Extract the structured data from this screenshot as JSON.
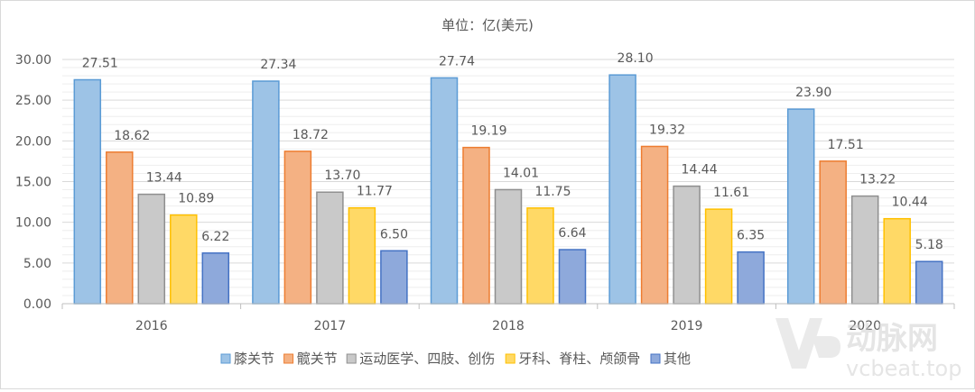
{
  "chart_data": {
    "type": "bar",
    "title": "单位：亿(美元)",
    "xlabel": "",
    "ylabel": "",
    "categories": [
      "2016",
      "2017",
      "2018",
      "2019",
      "2020"
    ],
    "ylim": [
      0,
      30
    ],
    "yticks": [
      "0.00",
      "5.00",
      "10.00",
      "15.00",
      "20.00",
      "25.00",
      "30.00"
    ],
    "grid": true,
    "legend_position": "bottom",
    "series": [
      {
        "name": "膝关节",
        "color": "#9dc3e6",
        "stroke": "#5b9bd5",
        "values": [
          27.51,
          27.34,
          27.74,
          28.1,
          23.9
        ],
        "labels": [
          "27.51",
          "27.34",
          "27.74",
          "28.10",
          "23.90"
        ]
      },
      {
        "name": "髋关节",
        "color": "#f4b183",
        "stroke": "#ed7d31",
        "values": [
          18.62,
          18.72,
          19.19,
          19.32,
          17.51
        ],
        "labels": [
          "18.62",
          "18.72",
          "19.19",
          "19.32",
          "17.51"
        ]
      },
      {
        "name": "运动医学、四肢、创伤",
        "color": "#c9c9c9",
        "stroke": "#8f8f8f",
        "values": [
          13.44,
          13.7,
          14.01,
          14.44,
          13.22
        ],
        "labels": [
          "13.44",
          "13.70",
          "14.01",
          "14.44",
          "13.22"
        ]
      },
      {
        "name": "牙科、脊柱、颅颌骨",
        "color": "#ffd966",
        "stroke": "#ffc000",
        "values": [
          10.89,
          11.77,
          11.75,
          11.61,
          10.44
        ],
        "labels": [
          "10.89",
          "11.77",
          "11.75",
          "11.61",
          "10.44"
        ]
      },
      {
        "name": "其他",
        "color": "#8ea9db",
        "stroke": "#4472c4",
        "values": [
          6.22,
          6.5,
          6.64,
          6.35,
          5.18
        ],
        "labels": [
          "6.22",
          "6.50",
          "6.64",
          "6.35",
          "5.18"
        ]
      }
    ]
  },
  "watermark": {
    "text": "动脉网",
    "url": "vcbeat.top"
  }
}
